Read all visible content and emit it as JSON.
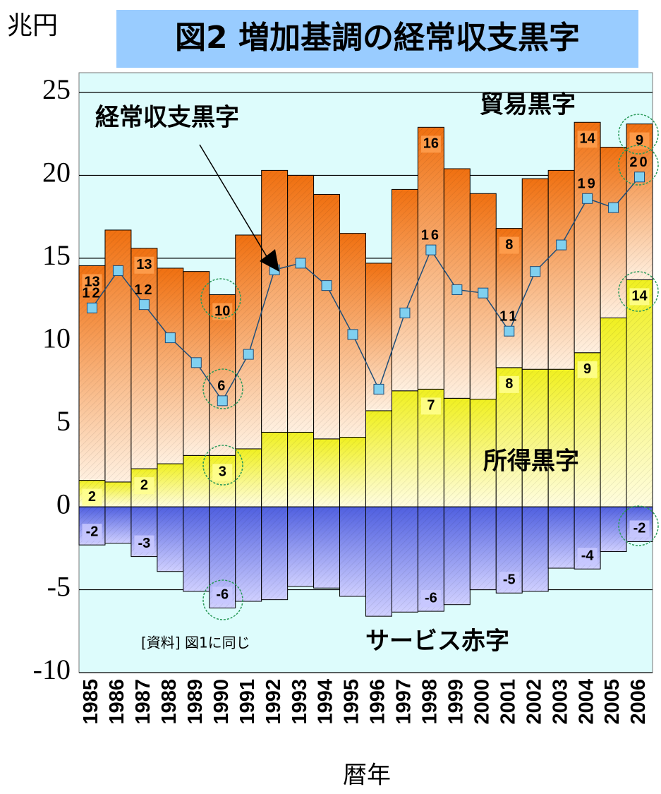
{
  "chart_data": {
    "type": "stacked_bar_line",
    "title": "図2 増加基調の経常収支黒字",
    "y_label": "兆円",
    "x_label": "暦年",
    "source": "[資料] 図1に同じ",
    "categories": [
      "1985",
      "1986",
      "1987",
      "1988",
      "1989",
      "1990",
      "1991",
      "1992",
      "1993",
      "1994",
      "1995",
      "1996",
      "1997",
      "1998",
      "1999",
      "2000",
      "2001",
      "2002",
      "2003",
      "2004",
      "2005",
      "2006"
    ],
    "series": [
      {
        "name": "所得黒字",
        "color": "#f0f020",
        "stack": "pos",
        "values": [
          1.6,
          1.5,
          2.3,
          2.6,
          3.1,
          3.1,
          3.5,
          4.5,
          4.5,
          4.1,
          4.2,
          5.8,
          7.0,
          7.1,
          6.55,
          6.5,
          8.4,
          8.3,
          8.3,
          9.3,
          11.4,
          13.7
        ],
        "value_labels": [
          "2",
          null,
          "2",
          null,
          null,
          "3",
          null,
          null,
          null,
          null,
          null,
          null,
          null,
          "7",
          null,
          null,
          "8",
          null,
          null,
          "9",
          null,
          "14"
        ]
      },
      {
        "name": "貿易黒字",
        "color": "#f07010",
        "stack": "pos",
        "values": [
          12.95,
          15.2,
          13.3,
          11.8,
          11.1,
          9.7,
          12.9,
          15.8,
          15.5,
          14.75,
          12.3,
          8.9,
          12.15,
          15.8,
          13.85,
          12.4,
          8.4,
          11.5,
          12.0,
          13.9,
          10.3,
          9.4
        ],
        "value_labels": [
          "13",
          null,
          "13",
          null,
          null,
          "10",
          null,
          null,
          null,
          null,
          null,
          null,
          null,
          "16",
          null,
          null,
          "8",
          null,
          null,
          "14",
          null,
          "9"
        ]
      },
      {
        "name": "サービス赤字",
        "color": "#5060e0",
        "stack": "neg",
        "values": [
          -2.3,
          -2.2,
          -3.0,
          -3.9,
          -5.1,
          -6.1,
          -5.7,
          -5.6,
          -4.8,
          -4.9,
          -5.4,
          -6.6,
          -6.35,
          -6.3,
          -5.9,
          -5.0,
          -5.2,
          -5.1,
          -3.7,
          -3.75,
          -2.7,
          -2.1
        ],
        "value_labels": [
          "-2",
          null,
          "-3",
          null,
          null,
          "-6",
          null,
          null,
          null,
          null,
          null,
          null,
          null,
          "-6",
          null,
          null,
          "-5",
          null,
          null,
          "-4",
          null,
          "-2"
        ]
      },
      {
        "name": "経常収支黒字",
        "color": "#1f4e79",
        "marker_color": "#80d0f0",
        "type": "line",
        "values": [
          12.0,
          14.25,
          12.2,
          10.2,
          8.7,
          6.4,
          9.2,
          14.3,
          14.7,
          13.35,
          10.4,
          7.1,
          11.7,
          15.5,
          13.1,
          12.9,
          10.6,
          14.2,
          15.8,
          18.6,
          18.05,
          19.9
        ],
        "value_labels": [
          "12",
          null,
          "12",
          null,
          null,
          "6",
          null,
          null,
          null,
          null,
          null,
          null,
          null,
          "16",
          null,
          null,
          "11",
          null,
          null,
          "19",
          null,
          "20"
        ]
      }
    ],
    "ylim": [
      -10,
      25
    ],
    "yticks": [
      -10,
      -5,
      0,
      5,
      10,
      15,
      20,
      25
    ],
    "grid": true
  }
}
